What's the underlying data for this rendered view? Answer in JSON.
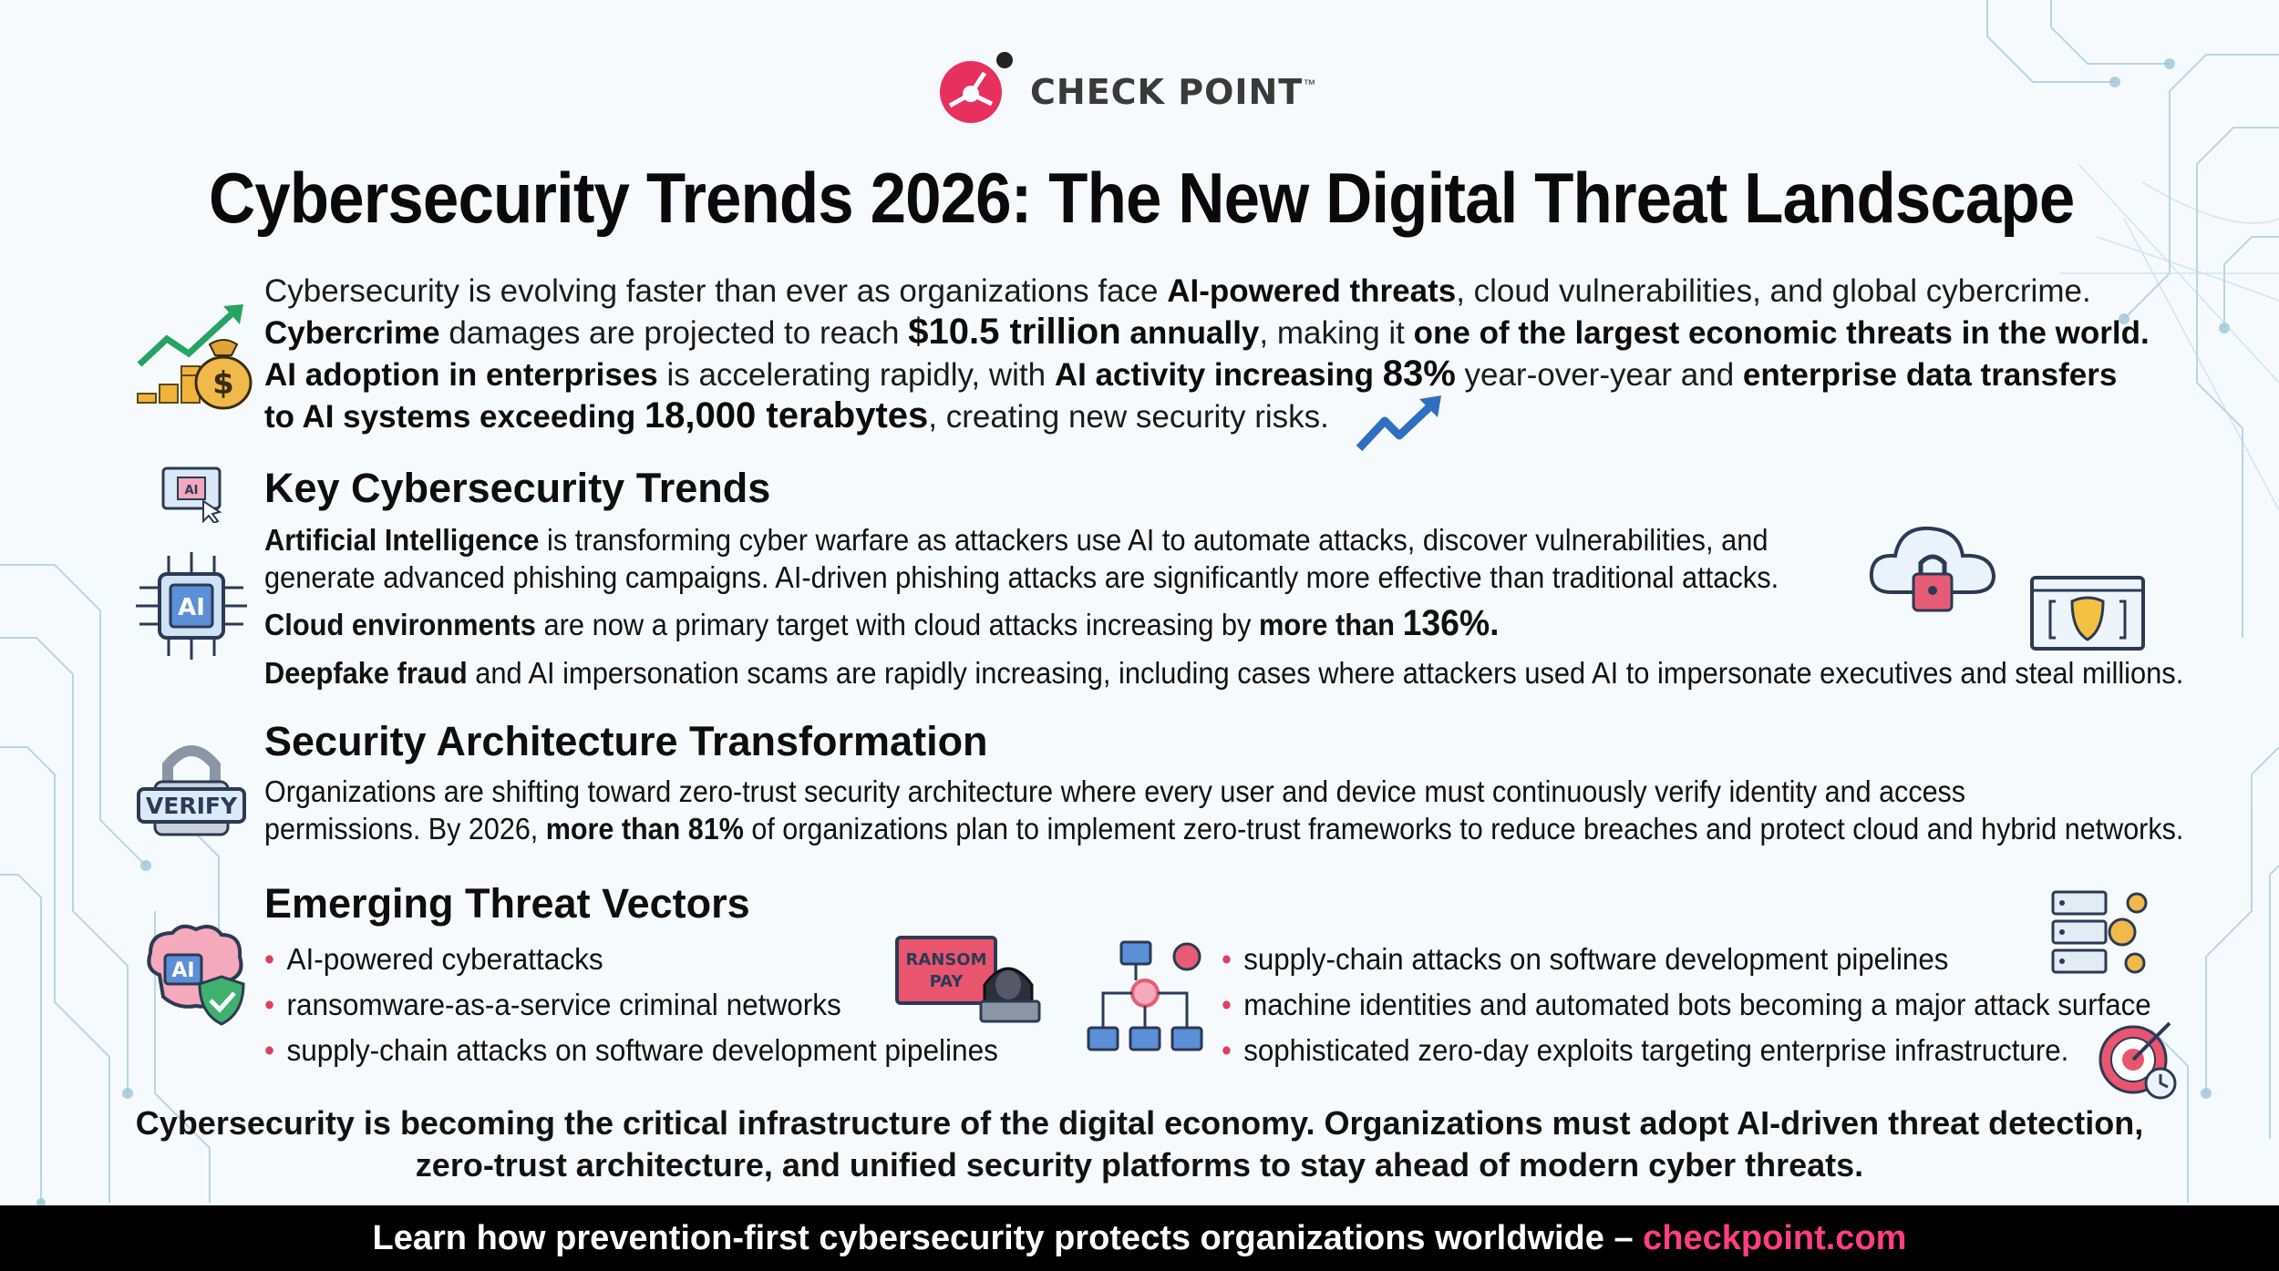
{
  "brand": {
    "name": "CHECK POINT",
    "tm": "™",
    "accent": "#e8305f"
  },
  "title": "Cybersecurity Trends 2026: The New Digital Threat Landscape",
  "intro": {
    "l1a": "Cybersecurity is evolving faster than ever as organizations face ",
    "l1b": "AI-powered threats",
    "l1c": ", cloud vulnerabilities, and global cybercrime.",
    "l2a": "Cybercrime",
    "l2b": " damages are projected to reach ",
    "l2c": "$10.5 trillion",
    "l2d": " annually",
    "l2e": ", making it ",
    "l2f": "one of the largest economic threats in the world.",
    "l3a": "AI adoption in enterprises",
    "l3b": " is accelerating rapidly, with ",
    "l3c": "AI activity increasing ",
    "l3d": "83%",
    "l3e": " year-over-year and ",
    "l3f": "enterprise data transfers",
    "l4a": "to AI systems exceeding ",
    "l4b": "18,000 terabytes",
    "l4c": ", creating new security risks."
  },
  "trends": {
    "heading": "Key Cybersecurity Trends",
    "l1a": "Artificial Intelligence",
    "l1b": " is transforming cyber warfare as attackers use AI to automate attacks, discover vulnerabilities, and",
    "l2": "generate advanced phishing campaigns. AI-driven phishing attacks are significantly more effective than traditional attacks.",
    "l3a": "Cloud environments",
    "l3b": " are now a primary target with cloud attacks increasing by ",
    "l3c": "more than ",
    "l3d": "136%.",
    "l4a": "Deepfake fraud",
    "l4b": " and AI impersonation scams are rapidly increasing, including cases where attackers used AI to impersonate executives and steal millions."
  },
  "architecture": {
    "heading": "Security Architecture Transformation",
    "l1": "Organizations are shifting toward zero-trust security architecture where every user and device must continuously verify identity and access",
    "l2a": "permissions. By 2026, ",
    "l2b": "more than 81%",
    "l2c": " of organizations plan to implement zero-trust frameworks to reduce breaches and protect cloud and hybrid networks.",
    "verify_label": "VERIFY"
  },
  "vectors": {
    "heading": "Emerging Threat Vectors",
    "left": [
      "AI-powered cyberattacks",
      "ransomware-as-a-service criminal networks",
      "supply-chain attacks on software development pipelines"
    ],
    "right": [
      "supply-chain attacks on software development pipelines",
      "machine identities and automated bots becoming a major attack surface",
      "sophisticated zero-day exploits targeting enterprise infrastructure."
    ],
    "ransom_label_1": "RANSOM",
    "ransom_label_2": "PAY",
    "ai_chip_label": "AI",
    "ai_brain_label": "AI",
    "ai_screen_label": "AI"
  },
  "conclusion": {
    "l1": "Cybersecurity is becoming the critical infrastructure of the digital economy. Organizations must adopt AI-driven threat detection,",
    "l2": "zero-trust architecture, and unified security platforms to stay ahead of modern cyber threats."
  },
  "footer": {
    "text": "Learn how prevention-first cybersecurity protects organizations worldwide – ",
    "link": "checkpoint.com"
  },
  "icons": [
    "growth-chart-icon",
    "money-bag-icon",
    "trend-arrow-icon",
    "ai-screen-icon",
    "ai-chip-icon",
    "cloud-lock-icon",
    "deepfake-mask-icon",
    "padlock-verify-icon",
    "ai-brain-shield-icon",
    "ransomware-hacker-icon",
    "supply-chain-network-icon",
    "server-gears-icon",
    "target-clock-icon"
  ]
}
